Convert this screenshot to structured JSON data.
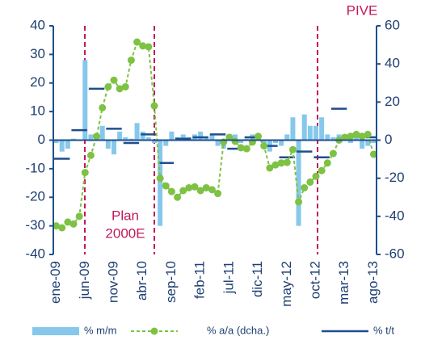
{
  "chart_data": {
    "type": "combo",
    "categories": [
      "ene-09",
      null,
      null,
      null,
      null,
      "jun-09",
      null,
      null,
      null,
      null,
      "nov-09",
      null,
      null,
      null,
      null,
      "abr-10",
      null,
      null,
      null,
      null,
      "sep-10",
      null,
      null,
      null,
      null,
      "feb-11",
      null,
      null,
      null,
      null,
      "jul-11",
      null,
      null,
      null,
      null,
      "dic-11",
      null,
      null,
      null,
      null,
      "may-12",
      null,
      null,
      null,
      null,
      "oct-12",
      null,
      null,
      null,
      null,
      "mar-13",
      null,
      null,
      null,
      null,
      "ago-13"
    ],
    "series": [
      {
        "name": "% m/m",
        "kind": "bar",
        "color": "#86c8ec",
        "axis": "y",
        "values": [
          -1,
          -4,
          -3,
          0.5,
          0,
          28,
          2,
          2,
          5,
          -3,
          -5,
          3,
          1,
          0.5,
          6,
          3,
          1,
          -1,
          -30,
          -2,
          3,
          1,
          2,
          1,
          2,
          3,
          1,
          2,
          -2,
          -3,
          1,
          2,
          -1,
          0.5,
          2,
          1,
          -2,
          -4,
          -1,
          -2,
          2,
          8,
          -30,
          9,
          5,
          5,
          8,
          2,
          1,
          2,
          1,
          -1,
          1,
          -3,
          -2,
          -1
        ]
      },
      {
        "name": "% a/a (dcha.)",
        "kind": "line",
        "color": "#7dc242",
        "axis": "y2",
        "values": [
          -45,
          -46,
          -43,
          -44,
          -40,
          -17,
          -8,
          2,
          17,
          28,
          31.5,
          27,
          28,
          42,
          51.5,
          49.5,
          49,
          18,
          -20,
          -24,
          -27,
          -30,
          -26.5,
          -25,
          -24.5,
          -26.5,
          -25,
          -26,
          -28,
          -1,
          1.5,
          -0.6,
          -4,
          -4.5,
          -1,
          2,
          -3,
          -14.6,
          -13,
          -12,
          -11.7,
          -5,
          -32.4,
          -25,
          -22,
          -19,
          -16,
          -12,
          -7,
          0,
          1.5,
          2,
          3,
          2,
          3,
          -7.4
        ]
      },
      {
        "name": "% t/t",
        "kind": "step",
        "color": "#1f4e8c",
        "axis": "y",
        "values": [
          -6.5,
          null,
          null,
          3.5,
          null,
          null,
          18,
          null,
          null,
          4,
          null,
          null,
          -1,
          null,
          null,
          2,
          null,
          null,
          -8,
          null,
          null,
          0.5,
          null,
          null,
          1,
          null,
          null,
          2,
          null,
          null,
          -3,
          null,
          null,
          1,
          null,
          null,
          -2,
          null,
          null,
          -6,
          null,
          null,
          -4,
          null,
          null,
          -6,
          null,
          null,
          11,
          null,
          null,
          2,
          null,
          null,
          1,
          null
        ]
      }
    ],
    "ylim": [
      -40,
      40
    ],
    "yticks": [
      -40,
      -30,
      -20,
      -10,
      0,
      10,
      20,
      30,
      40
    ],
    "y2lim": [
      -60,
      60
    ],
    "y2ticks": [
      -60,
      -40,
      -20,
      0,
      20,
      40,
      60
    ],
    "annotations": [
      {
        "text": [
          "Plan",
          "2000E"
        ],
        "color": "#c2185b"
      },
      {
        "text": [
          "PIVE"
        ],
        "color": "#c2185b"
      }
    ],
    "grid": false
  }
}
